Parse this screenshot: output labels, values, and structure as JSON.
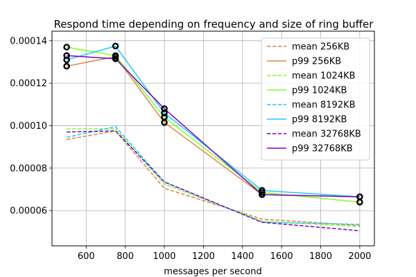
{
  "chart_data": {
    "type": "line",
    "title": "Respond time depending on frequency and size of ring buffer",
    "xlabel": "messages per second",
    "ylabel": "",
    "x": [
      500,
      750,
      1000,
      1500,
      2000
    ],
    "xlim": [
      425,
      2075
    ],
    "ylim": [
      4.34e-05,
      0.0001445
    ],
    "xticks": [
      600,
      800,
      1000,
      1200,
      1400,
      1600,
      1800,
      2000
    ],
    "xtick_labels": [
      "600",
      "800",
      "1000",
      "1200",
      "1400",
      "1600",
      "1800",
      "2000"
    ],
    "yticks": [
      6e-05,
      8e-05,
      0.0001,
      0.00012,
      0.00014
    ],
    "ytick_labels": [
      "0.00006",
      "0.00008",
      "0.00010",
      "0.00012",
      "0.00014"
    ],
    "grid": true,
    "legend_position": "upper right",
    "series": [
      {
        "name": "mean 256KB",
        "style": "dashed",
        "color": "#d2874b",
        "values": [
          9.35e-05,
          9.75e-05,
          7.05e-05,
          5.6e-05,
          5.3e-05
        ]
      },
      {
        "name": "p99 256KB",
        "style": "solid",
        "color": "#d2874b",
        "values": [
          0.000128,
          0.0001325,
          0.0001015,
          6.75e-05,
          6.65e-05
        ]
      },
      {
        "name": "mean 1024KB",
        "style": "dashed",
        "color": "#7fff1f",
        "values": [
          9.85e-05,
          9.85e-05,
          7.25e-05,
          5.5e-05,
          5.25e-05
        ]
      },
      {
        "name": "p99 1024KB",
        "style": "solid",
        "color": "#7fff1f",
        "values": [
          0.000137,
          0.000133,
          0.000104,
          6.85e-05,
          6.4e-05
        ]
      },
      {
        "name": "mean 8192KB",
        "style": "dashed",
        "color": "#1ec8ff",
        "values": [
          9.45e-05,
          9.95e-05,
          7.35e-05,
          5.45e-05,
          5.35e-05
        ]
      },
      {
        "name": "p99 8192KB",
        "style": "solid",
        "color": "#1ec8ff",
        "values": [
          0.000131,
          0.0001375,
          0.000106,
          6.95e-05,
          6.65e-05
        ]
      },
      {
        "name": "mean 32768KB",
        "style": "dashed",
        "color": "#7a00c8",
        "values": [
          9.7e-05,
          9.75e-05,
          7.35e-05,
          5.45e-05,
          5.05e-05
        ]
      },
      {
        "name": "p99 32768KB",
        "style": "solid",
        "color": "#7a00c8",
        "values": [
          0.000133,
          0.0001315,
          0.000108,
          6.75e-05,
          6.65e-05
        ]
      }
    ],
    "markers": {
      "color": "#000000",
      "p99_points": [
        [
          500,
          0.000128
        ],
        [
          500,
          0.000137
        ],
        [
          500,
          0.000131
        ],
        [
          500,
          0.000133
        ],
        [
          750,
          0.0001325
        ],
        [
          750,
          0.000133
        ],
        [
          750,
          0.0001375
        ],
        [
          750,
          0.0001315
        ],
        [
          1000,
          0.0001015
        ],
        [
          1000,
          0.000104
        ],
        [
          1000,
          0.000106
        ],
        [
          1000,
          0.000108
        ],
        [
          1500,
          6.75e-05
        ],
        [
          1500,
          6.85e-05
        ],
        [
          1500,
          6.95e-05
        ],
        [
          2000,
          6.65e-05
        ],
        [
          2000,
          6.4e-05
        ]
      ]
    }
  }
}
